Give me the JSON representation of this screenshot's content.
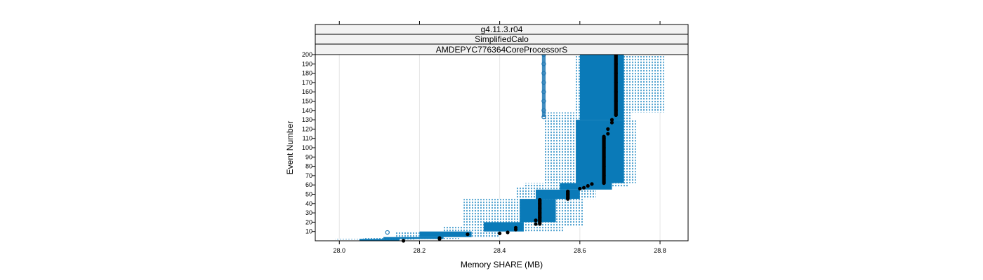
{
  "chart_data": {
    "type": "scatter",
    "strips": [
      "g4.11.3.r04",
      "SimplifiedCalo",
      "AMDEPYC776364CoreProcessorS"
    ],
    "xlabel": "Memory SHARE (MB)",
    "ylabel": "Event Number",
    "xlim": [
      27.94,
      28.87
    ],
    "ylim": [
      0,
      200
    ],
    "x_ticks": [
      28.0,
      28.2,
      28.4,
      28.6,
      28.8
    ],
    "x_tick_labels": [
      "28.0",
      "28.2",
      "28.4",
      "28.6",
      "28.8"
    ],
    "y_ticks": [
      10,
      20,
      30,
      40,
      50,
      60,
      70,
      80,
      90,
      100,
      110,
      120,
      130,
      140,
      150,
      160,
      170,
      180,
      190,
      200
    ],
    "y_tick_labels": [
      "10",
      "20",
      "30",
      "40",
      "50",
      "60",
      "70",
      "80",
      "90",
      "100",
      "110",
      "120",
      "130",
      "140",
      "150",
      "160",
      "170",
      "180",
      "190",
      "200"
    ],
    "grid": "vertical",
    "colors": {
      "outer_band": "#5aa7d2",
      "inner_band": "#0a7ab8",
      "median_points": "#000000",
      "outlier_points": "#1f78b4",
      "strip_fill": "#f2f2f2"
    },
    "series": [
      {
        "name": "",
        "role": "outer-range-band",
        "points": [
          {
            "y_from": 1,
            "y_to": 2,
            "x_min": 27.99,
            "x_max": 28.19
          },
          {
            "y_from": 2,
            "y_to": 4,
            "x_min": 28.06,
            "x_max": 28.3
          },
          {
            "y_from": 4,
            "y_to": 10,
            "x_min": 28.14,
            "x_max": 28.4
          },
          {
            "y_from": 10,
            "y_to": 15,
            "x_min": 28.26,
            "x_max": 28.56
          },
          {
            "y_from": 15,
            "y_to": 45,
            "x_min": 28.31,
            "x_max": 28.61
          },
          {
            "y_from": 45,
            "y_to": 58,
            "x_min": 28.44,
            "x_max": 28.64
          },
          {
            "y_from": 58,
            "y_to": 62,
            "x_min": 28.46,
            "x_max": 28.72
          },
          {
            "y_from": 62,
            "y_to": 130,
            "x_min": 28.51,
            "x_max": 28.74
          },
          {
            "y_from": 130,
            "y_to": 138,
            "x_min": 28.51,
            "x_max": 28.73
          },
          {
            "y_from": 138,
            "y_to": 200,
            "x_min": 28.59,
            "x_max": 28.81
          }
        ]
      },
      {
        "name": "",
        "role": "inner-band",
        "points": [
          {
            "y_from": 0,
            "y_to": 2,
            "x_min": 28.05,
            "x_max": 28.15
          },
          {
            "y_from": 2,
            "y_to": 4,
            "x_min": 28.11,
            "x_max": 28.26
          },
          {
            "y_from": 4,
            "y_to": 10,
            "x_min": 28.2,
            "x_max": 28.33
          },
          {
            "y_from": 10,
            "y_to": 20,
            "x_min": 28.36,
            "x_max": 28.46
          },
          {
            "y_from": 20,
            "y_to": 45,
            "x_min": 28.45,
            "x_max": 28.54
          },
          {
            "y_from": 45,
            "y_to": 55,
            "x_min": 28.49,
            "x_max": 28.6
          },
          {
            "y_from": 55,
            "y_to": 62,
            "x_min": 28.55,
            "x_max": 28.68
          },
          {
            "y_from": 62,
            "y_to": 130,
            "x_min": 28.59,
            "x_max": 28.71
          },
          {
            "y_from": 130,
            "y_to": 200,
            "x_min": 28.6,
            "x_max": 28.71
          }
        ]
      },
      {
        "name": "",
        "role": "outlier-points",
        "points": [
          {
            "x": 28.12,
            "y": 9
          },
          {
            "x": 28.51,
            "y": 133
          },
          {
            "x": 28.51,
            "y": 140
          },
          {
            "x": 28.51,
            "y": 150
          },
          {
            "x": 28.51,
            "y": 160
          },
          {
            "x": 28.51,
            "y": 170
          },
          {
            "x": 28.51,
            "y": 180
          },
          {
            "x": 28.51,
            "y": 190
          },
          {
            "x": 28.51,
            "y": 200
          }
        ]
      },
      {
        "name": "",
        "role": "median-points",
        "points": [
          {
            "x": 28.16,
            "y": 0
          },
          {
            "x": 28.25,
            "y": 2
          },
          {
            "x": 28.25,
            "y": 3
          },
          {
            "x": 28.32,
            "y": 7
          },
          {
            "x": 28.4,
            "y": 8
          },
          {
            "x": 28.42,
            "y": 9
          },
          {
            "x": 28.44,
            "y": 12
          },
          {
            "x": 28.44,
            "y": 14
          },
          {
            "x": 28.49,
            "y": 18
          },
          {
            "x": 28.49,
            "y": 22
          },
          {
            "x": 28.5,
            "y": 25
          },
          {
            "x": 28.5,
            "y": 30
          },
          {
            "x": 28.5,
            "y": 35
          },
          {
            "x": 28.5,
            "y": 40
          },
          {
            "x": 28.5,
            "y": 44
          },
          {
            "x": 28.57,
            "y": 45
          },
          {
            "x": 28.57,
            "y": 50
          },
          {
            "x": 28.57,
            "y": 53
          },
          {
            "x": 28.6,
            "y": 56
          },
          {
            "x": 28.61,
            "y": 57
          },
          {
            "x": 28.62,
            "y": 59
          },
          {
            "x": 28.63,
            "y": 61
          },
          {
            "x": 28.66,
            "y": 62
          },
          {
            "x": 28.66,
            "y": 70
          },
          {
            "x": 28.66,
            "y": 80
          },
          {
            "x": 28.66,
            "y": 90
          },
          {
            "x": 28.66,
            "y": 100
          },
          {
            "x": 28.66,
            "y": 110
          },
          {
            "x": 28.67,
            "y": 115
          },
          {
            "x": 28.67,
            "y": 120
          },
          {
            "x": 28.68,
            "y": 127
          },
          {
            "x": 28.68,
            "y": 130
          },
          {
            "x": 28.69,
            "y": 135
          },
          {
            "x": 28.69,
            "y": 140
          },
          {
            "x": 28.69,
            "y": 150
          },
          {
            "x": 28.69,
            "y": 160
          },
          {
            "x": 28.69,
            "y": 170
          },
          {
            "x": 28.69,
            "y": 180
          },
          {
            "x": 28.69,
            "y": 190
          },
          {
            "x": 28.69,
            "y": 200
          }
        ]
      }
    ]
  }
}
